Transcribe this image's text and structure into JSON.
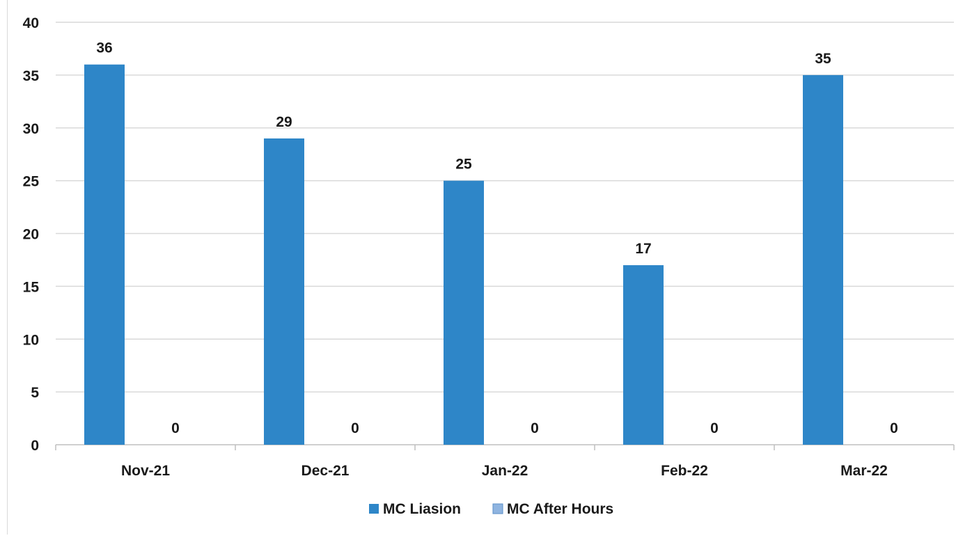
{
  "chart_data": {
    "type": "bar",
    "title": "",
    "xlabel": "",
    "ylabel": "",
    "categories": [
      "Nov-21",
      "Dec-21",
      "Jan-22",
      "Feb-22",
      "Mar-22"
    ],
    "series": [
      {
        "name": "MC Liasion",
        "values": [
          36,
          29,
          25,
          17,
          35
        ],
        "color": "#2e86c8"
      },
      {
        "name": "MC After Hours",
        "values": [
          0,
          0,
          0,
          0,
          0
        ],
        "color": "#8fb4e0"
      }
    ],
    "ylim": [
      0,
      40
    ],
    "yticks": [
      0,
      5,
      10,
      15,
      20,
      25,
      30,
      35,
      40
    ],
    "grid": true,
    "legend_position": "bottom-center",
    "data_labels": true
  }
}
